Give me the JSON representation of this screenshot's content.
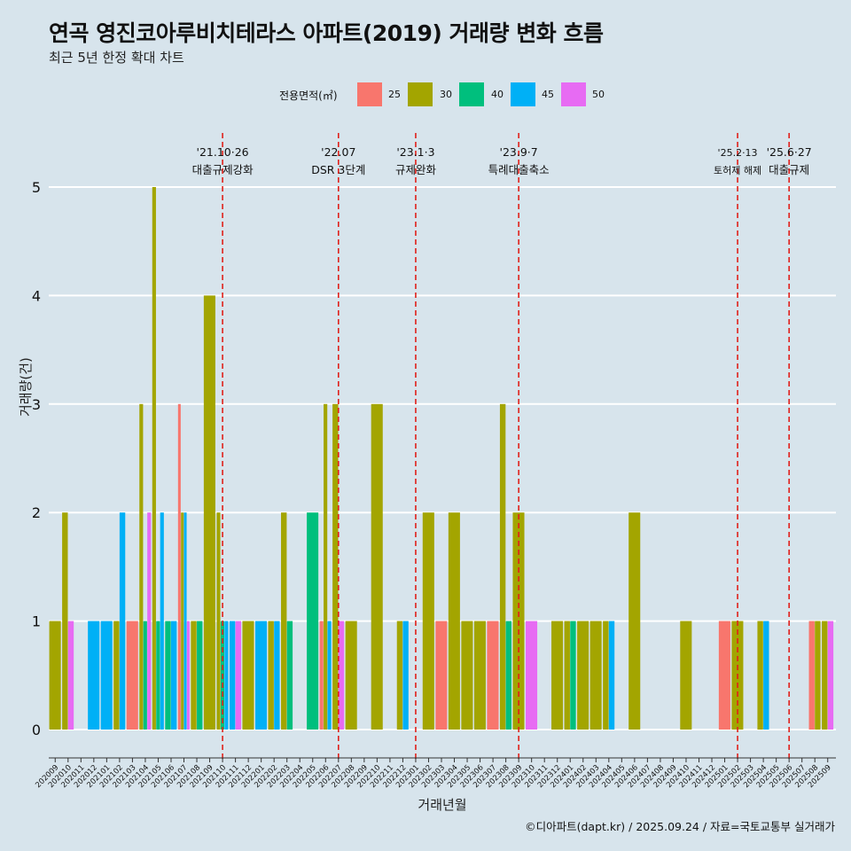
{
  "title": "연곡 영진코아루비치테라스 아파트(2019) 거래량 변화 흐름",
  "subtitle": "최근 5년 한정 확대 차트",
  "caption": "©디아파트(dapt.kr) / 2025.09.24 / 자료=국토교통부 실거래가",
  "legend": {
    "title": "전용면적(㎡)",
    "items": [
      {
        "label": "25",
        "color": "#F8766D"
      },
      {
        "label": "30",
        "color": "#A3A500"
      },
      {
        "label": "40",
        "color": "#00BF7D"
      },
      {
        "label": "45",
        "color": "#00B0F6"
      },
      {
        "label": "50",
        "color": "#E76BF3"
      }
    ]
  },
  "chart_data": {
    "type": "bar",
    "xlabel": "거래년월",
    "ylabel": "거래량(건)",
    "ylim": [
      0,
      5
    ],
    "y_ticks": [
      0,
      1,
      2,
      3,
      4,
      5
    ],
    "grid": "horizontal",
    "legend_position": "top",
    "categories": [
      "202009",
      "202010",
      "202011",
      "202012",
      "202101",
      "202102",
      "202103",
      "202104",
      "202105",
      "202106",
      "202107",
      "202108",
      "202109",
      "202110",
      "202111",
      "202112",
      "202201",
      "202202",
      "202203",
      "202204",
      "202205",
      "202206",
      "202207",
      "202208",
      "202209",
      "202210",
      "202211",
      "202212",
      "202301",
      "202302",
      "202303",
      "202304",
      "202305",
      "202306",
      "202307",
      "202308",
      "202309",
      "202310",
      "202311",
      "202312",
      "202401",
      "202402",
      "202403",
      "202404",
      "202405",
      "202406",
      "202407",
      "202408",
      "202409",
      "202410",
      "202411",
      "202412",
      "202501",
      "202502",
      "202503",
      "202504",
      "202505",
      "202506",
      "202507",
      "202508",
      "202509"
    ],
    "bars": [
      {
        "month": "202009",
        "values": {
          "30": 1
        }
      },
      {
        "month": "202010",
        "values": {
          "30": 2,
          "50": 1
        }
      },
      {
        "month": "202012",
        "values": {
          "45": 1
        }
      },
      {
        "month": "202101",
        "values": {
          "45": 1
        }
      },
      {
        "month": "202102",
        "values": {
          "30": 1,
          "45": 2
        }
      },
      {
        "month": "202103",
        "values": {
          "25": 1
        }
      },
      {
        "month": "202104",
        "values": {
          "30": 3,
          "40": 1,
          "50": 2
        }
      },
      {
        "month": "202105",
        "values": {
          "30": 5,
          "40": 1,
          "45": 2
        }
      },
      {
        "month": "202106",
        "values": {
          "40": 1,
          "45": 1
        }
      },
      {
        "month": "202107",
        "values": {
          "25": 3,
          "30": 2,
          "45": 2,
          "50": 1
        }
      },
      {
        "month": "202108",
        "values": {
          "30": 1,
          "40": 1
        }
      },
      {
        "month": "202109",
        "values": {
          "30": 4
        }
      },
      {
        "month": "202110",
        "values": {
          "30": 2,
          "40": 1,
          "45": 1
        }
      },
      {
        "month": "202111",
        "values": {
          "45": 1,
          "50": 1
        }
      },
      {
        "month": "202112",
        "values": {
          "30": 1
        }
      },
      {
        "month": "202201",
        "values": {
          "45": 1
        }
      },
      {
        "month": "202202",
        "values": {
          "30": 1,
          "45": 1
        }
      },
      {
        "month": "202203",
        "values": {
          "30": 2,
          "40": 1
        }
      },
      {
        "month": "202205",
        "values": {
          "40": 2
        }
      },
      {
        "month": "202206",
        "values": {
          "25": 1,
          "30": 3,
          "45": 1
        }
      },
      {
        "month": "202207",
        "values": {
          "50": 1,
          "30": 3
        }
      },
      {
        "month": "202208",
        "values": {
          "30": 1
        }
      },
      {
        "month": "202210",
        "values": {
          "30": 3
        }
      },
      {
        "month": "202212",
        "values": {
          "30": 1,
          "45": 1
        }
      },
      {
        "month": "202302",
        "values": {
          "30": 2
        }
      },
      {
        "month": "202303",
        "values": {
          "25": 1
        }
      },
      {
        "month": "202304",
        "values": {
          "30": 2
        }
      },
      {
        "month": "202305",
        "values": {
          "30": 1
        }
      },
      {
        "month": "202306",
        "values": {
          "30": 1
        }
      },
      {
        "month": "202307",
        "values": {
          "25": 1
        }
      },
      {
        "month": "202308",
        "values": {
          "30": 3,
          "40": 1
        }
      },
      {
        "month": "202309",
        "values": {
          "30": 2
        }
      },
      {
        "month": "202310",
        "values": {
          "50": 1
        }
      },
      {
        "month": "202312",
        "values": {
          "30": 1
        }
      },
      {
        "month": "202401",
        "values": {
          "30": 1,
          "40": 1
        }
      },
      {
        "month": "202402",
        "values": {
          "30": 1
        }
      },
      {
        "month": "202403",
        "values": {
          "30": 1
        }
      },
      {
        "month": "202404",
        "values": {
          "30": 1,
          "45": 1
        }
      },
      {
        "month": "202406",
        "values": {
          "30": 2
        }
      },
      {
        "month": "202410",
        "values": {
          "30": 1
        }
      },
      {
        "month": "202501",
        "values": {
          "25": 1
        }
      },
      {
        "month": "202502",
        "values": {
          "30": 1
        }
      },
      {
        "month": "202504",
        "values": {
          "30": 1,
          "45": 1
        }
      },
      {
        "month": "202508",
        "values": {
          "25": 1,
          "30": 1
        }
      },
      {
        "month": "202509",
        "values": {
          "30": 1,
          "50": 1
        }
      }
    ],
    "annotations": [
      {
        "month": "202110",
        "date": "'21.10·26",
        "label": "대출규제강화"
      },
      {
        "month": "202207",
        "date": "'22.07",
        "label": "DSR 3단계"
      },
      {
        "month": "202301",
        "date": "'23.1·3",
        "label": "규제완화"
      },
      {
        "month": "202309",
        "date": "'23.9·7",
        "label": "특례대출축소"
      },
      {
        "month": "202502",
        "date": "'25.2·13",
        "label": "토허제 해제"
      },
      {
        "month": "202506",
        "date": "'25.6·27",
        "label": "대출규제"
      }
    ]
  }
}
